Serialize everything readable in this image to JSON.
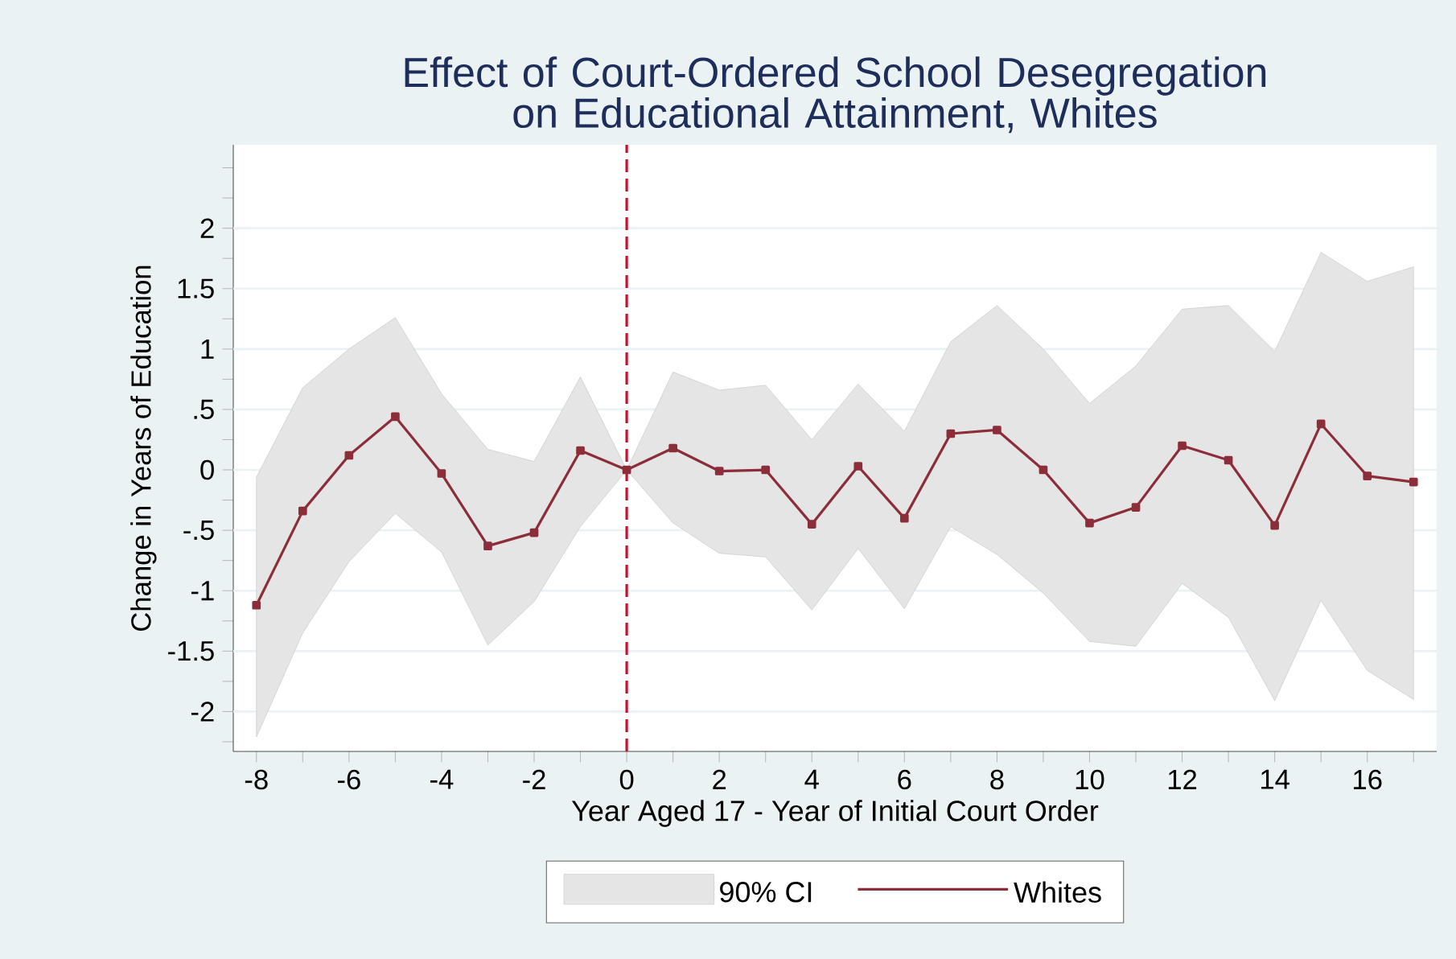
{
  "chart_data": {
    "type": "line",
    "title": "Effect of Court-Ordered School Desegregation on Educational Attainment, Whites",
    "xlabel": "Year Aged 17 - Year of Initial Court Order",
    "ylabel": "Change in Years of Education",
    "x": [
      -8,
      -7,
      -6,
      -5,
      -4,
      -3,
      -2,
      -1,
      0,
      1,
      2,
      3,
      4,
      5,
      6,
      7,
      8,
      9,
      10,
      11,
      12,
      13,
      14,
      15,
      16,
      17
    ],
    "series": [
      {
        "name": "Whites",
        "type": "line",
        "color": "#8b2e3a",
        "marker": "square",
        "line_style": "solid",
        "values": [
          -1.12,
          -0.34,
          0.12,
          0.44,
          -0.03,
          -0.63,
          -0.52,
          0.16,
          0,
          0.18,
          -0.01,
          0,
          -0.45,
          0.03,
          -0.4,
          0.3,
          0.33,
          0,
          -0.44,
          -0.31,
          0.2,
          0.08,
          -0.46,
          0.38,
          -0.05,
          -0.1
        ],
        "lower": [
          -2.21,
          -1.35,
          -0.76,
          -0.36,
          -0.68,
          -1.45,
          -1.09,
          -0.47,
          0,
          -0.44,
          -0.69,
          -0.72,
          -1.16,
          -0.65,
          -1.15,
          -0.47,
          -0.7,
          -1.02,
          -1.42,
          -1.46,
          -0.94,
          -1.22,
          -1.91,
          -1.08,
          -1.66,
          -1.9
        ],
        "upper": [
          -0.06,
          0.68,
          1.0,
          1.26,
          0.63,
          0.17,
          0.07,
          0.77,
          0,
          0.81,
          0.66,
          0.7,
          0.25,
          0.71,
          0.32,
          1.06,
          1.36,
          1.0,
          0.55,
          0.86,
          1.33,
          1.36,
          0.98,
          1.8,
          1.56,
          1.68
        ]
      }
    ],
    "annotations": [
      "90% CI"
    ],
    "ref_lines": [
      {
        "axis": "x",
        "value": 0,
        "color": "#c8102e",
        "line_style": "dashed"
      }
    ],
    "xlim": [
      -8.5,
      17.5
    ],
    "ylim": [
      -2.33,
      2.69
    ],
    "xticks": [
      -8,
      {
        "value": -7,
        "label": null
      },
      -6,
      {
        "value": -5,
        "label": null
      },
      -4,
      {
        "value": -3,
        "label": null
      },
      -2,
      {
        "value": -1,
        "label": null
      },
      0,
      {
        "value": 1,
        "label": null
      },
      2,
      {
        "value": 3,
        "label": null
      },
      4,
      {
        "value": 5,
        "label": null
      },
      6,
      {
        "value": 7,
        "label": null
      },
      8,
      {
        "value": 9,
        "label": null
      },
      10,
      {
        "value": 11,
        "label": null
      },
      12,
      {
        "value": 13,
        "label": null
      },
      14,
      {
        "value": 15,
        "label": null
      },
      16,
      {
        "value": 17,
        "label": null
      }
    ],
    "yticks": [
      {
        "value": -2.25,
        "label": null
      },
      -2,
      {
        "value": -1.75,
        "label": null
      },
      -1.5,
      {
        "value": -1.25,
        "label": null
      },
      -1,
      {
        "value": -0.75,
        "label": null
      },
      {
        "value": -0.5,
        "label": "-.5"
      },
      {
        "value": -0.25,
        "label": null
      },
      0,
      {
        "value": 0.25,
        "label": null
      },
      {
        "value": 0.5,
        "label": ".5"
      },
      {
        "value": 0.75,
        "label": null
      },
      1,
      {
        "value": 1.25,
        "label": null
      },
      1.5,
      {
        "value": 1.75,
        "label": null
      },
      2,
      {
        "value": 2.25,
        "label": null
      },
      {
        "value": 2.5,
        "label": null
      }
    ],
    "grid": "y",
    "legend": "bottom"
  }
}
